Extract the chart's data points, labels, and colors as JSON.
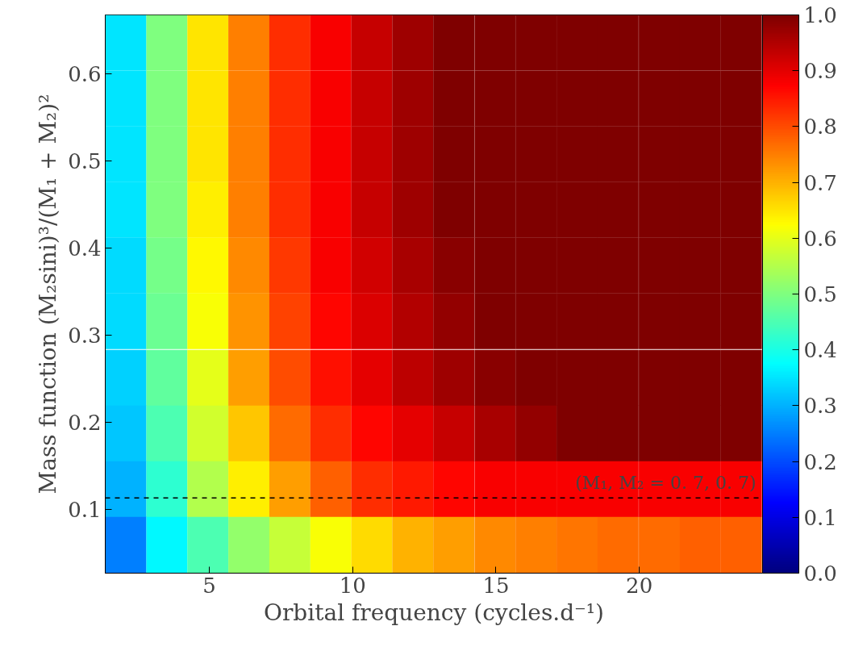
{
  "chart_data": {
    "type": "heatmap",
    "xlabel": "Orbital frequency (cycles.d⁻¹)",
    "ylabel": "Mass function (M₂sini)³/(M₁ + M₂)²",
    "x": [
      2.09,
      3.52,
      4.95,
      6.38,
      7.81,
      9.24,
      10.67,
      12.1,
      13.53,
      14.97,
      16.4,
      17.83,
      19.26,
      20.7,
      22.13,
      23.56
    ],
    "y": [
      0.636,
      0.572,
      0.508,
      0.444,
      0.38,
      0.316,
      0.251,
      0.187,
      0.123,
      0.059
    ],
    "cells": [
      [
        0.35,
        0.5,
        0.65,
        0.75,
        0.83,
        0.88,
        0.93,
        0.97,
        1.0,
        1.0,
        1.0,
        1.0,
        1.0,
        1.0,
        1.0,
        1.0
      ],
      [
        0.35,
        0.5,
        0.65,
        0.75,
        0.83,
        0.88,
        0.93,
        0.97,
        1.0,
        1.0,
        1.0,
        1.0,
        1.0,
        1.0,
        1.0,
        1.0
      ],
      [
        0.35,
        0.5,
        0.65,
        0.75,
        0.83,
        0.88,
        0.93,
        0.97,
        1.0,
        1.0,
        1.0,
        1.0,
        1.0,
        1.0,
        1.0,
        1.0
      ],
      [
        0.35,
        0.5,
        0.64,
        0.75,
        0.83,
        0.88,
        0.93,
        0.97,
        1.0,
        1.0,
        1.0,
        1.0,
        1.0,
        1.0,
        1.0,
        1.0
      ],
      [
        0.34,
        0.49,
        0.63,
        0.74,
        0.82,
        0.88,
        0.92,
        0.96,
        0.99,
        1.0,
        1.0,
        1.0,
        1.0,
        1.0,
        1.0,
        1.0
      ],
      [
        0.34,
        0.48,
        0.62,
        0.73,
        0.81,
        0.87,
        0.91,
        0.95,
        0.98,
        1.0,
        1.0,
        1.0,
        1.0,
        1.0,
        1.0,
        1.0
      ],
      [
        0.33,
        0.47,
        0.6,
        0.72,
        0.8,
        0.86,
        0.9,
        0.94,
        0.97,
        0.99,
        1.0,
        1.0,
        1.0,
        1.0,
        1.0,
        1.0
      ],
      [
        0.32,
        0.45,
        0.58,
        0.68,
        0.77,
        0.83,
        0.87,
        0.9,
        0.93,
        0.96,
        0.98,
        1.0,
        1.0,
        1.0,
        1.0,
        1.0
      ],
      [
        0.3,
        0.42,
        0.55,
        0.64,
        0.72,
        0.78,
        0.83,
        0.85,
        0.87,
        0.88,
        0.88,
        0.88,
        0.88,
        0.88,
        0.88,
        0.88
      ],
      [
        0.25,
        0.37,
        0.45,
        0.52,
        0.57,
        0.62,
        0.66,
        0.7,
        0.72,
        0.74,
        0.75,
        0.76,
        0.77,
        0.77,
        0.78,
        0.78
      ]
    ],
    "xlim": [
      1.37,
      24.3
    ],
    "xticks": [
      5,
      10,
      15,
      20
    ],
    "ylim": [
      0.0265,
      0.668
    ],
    "yticks": [
      0.1,
      0.2,
      0.3,
      0.4,
      0.5,
      0.6
    ],
    "clim": [
      0,
      1
    ],
    "cticks": [
      {
        "value": 0,
        "label": "0.0"
      },
      {
        "value": 0.1,
        "label": "0.1"
      },
      {
        "value": 0.2,
        "label": "0.2"
      },
      {
        "value": 0.3,
        "label": "0.3"
      },
      {
        "value": 0.4,
        "label": "0.4"
      },
      {
        "value": 0.5,
        "label": "0.5"
      },
      {
        "value": 0.6,
        "label": "0.6"
      },
      {
        "value": 0.7,
        "label": "0.7"
      },
      {
        "value": 0.8,
        "label": "0.8"
      },
      {
        "value": 0.9,
        "label": "0.9"
      },
      {
        "value": 1,
        "label": "1.0"
      }
    ],
    "ref_lines": [
      {
        "axis": "y",
        "value": 0.113,
        "label": "(M₁, M₂ = 0. 7, 0. 7)",
        "color": "#000000",
        "line_style": "dashed"
      }
    ]
  }
}
